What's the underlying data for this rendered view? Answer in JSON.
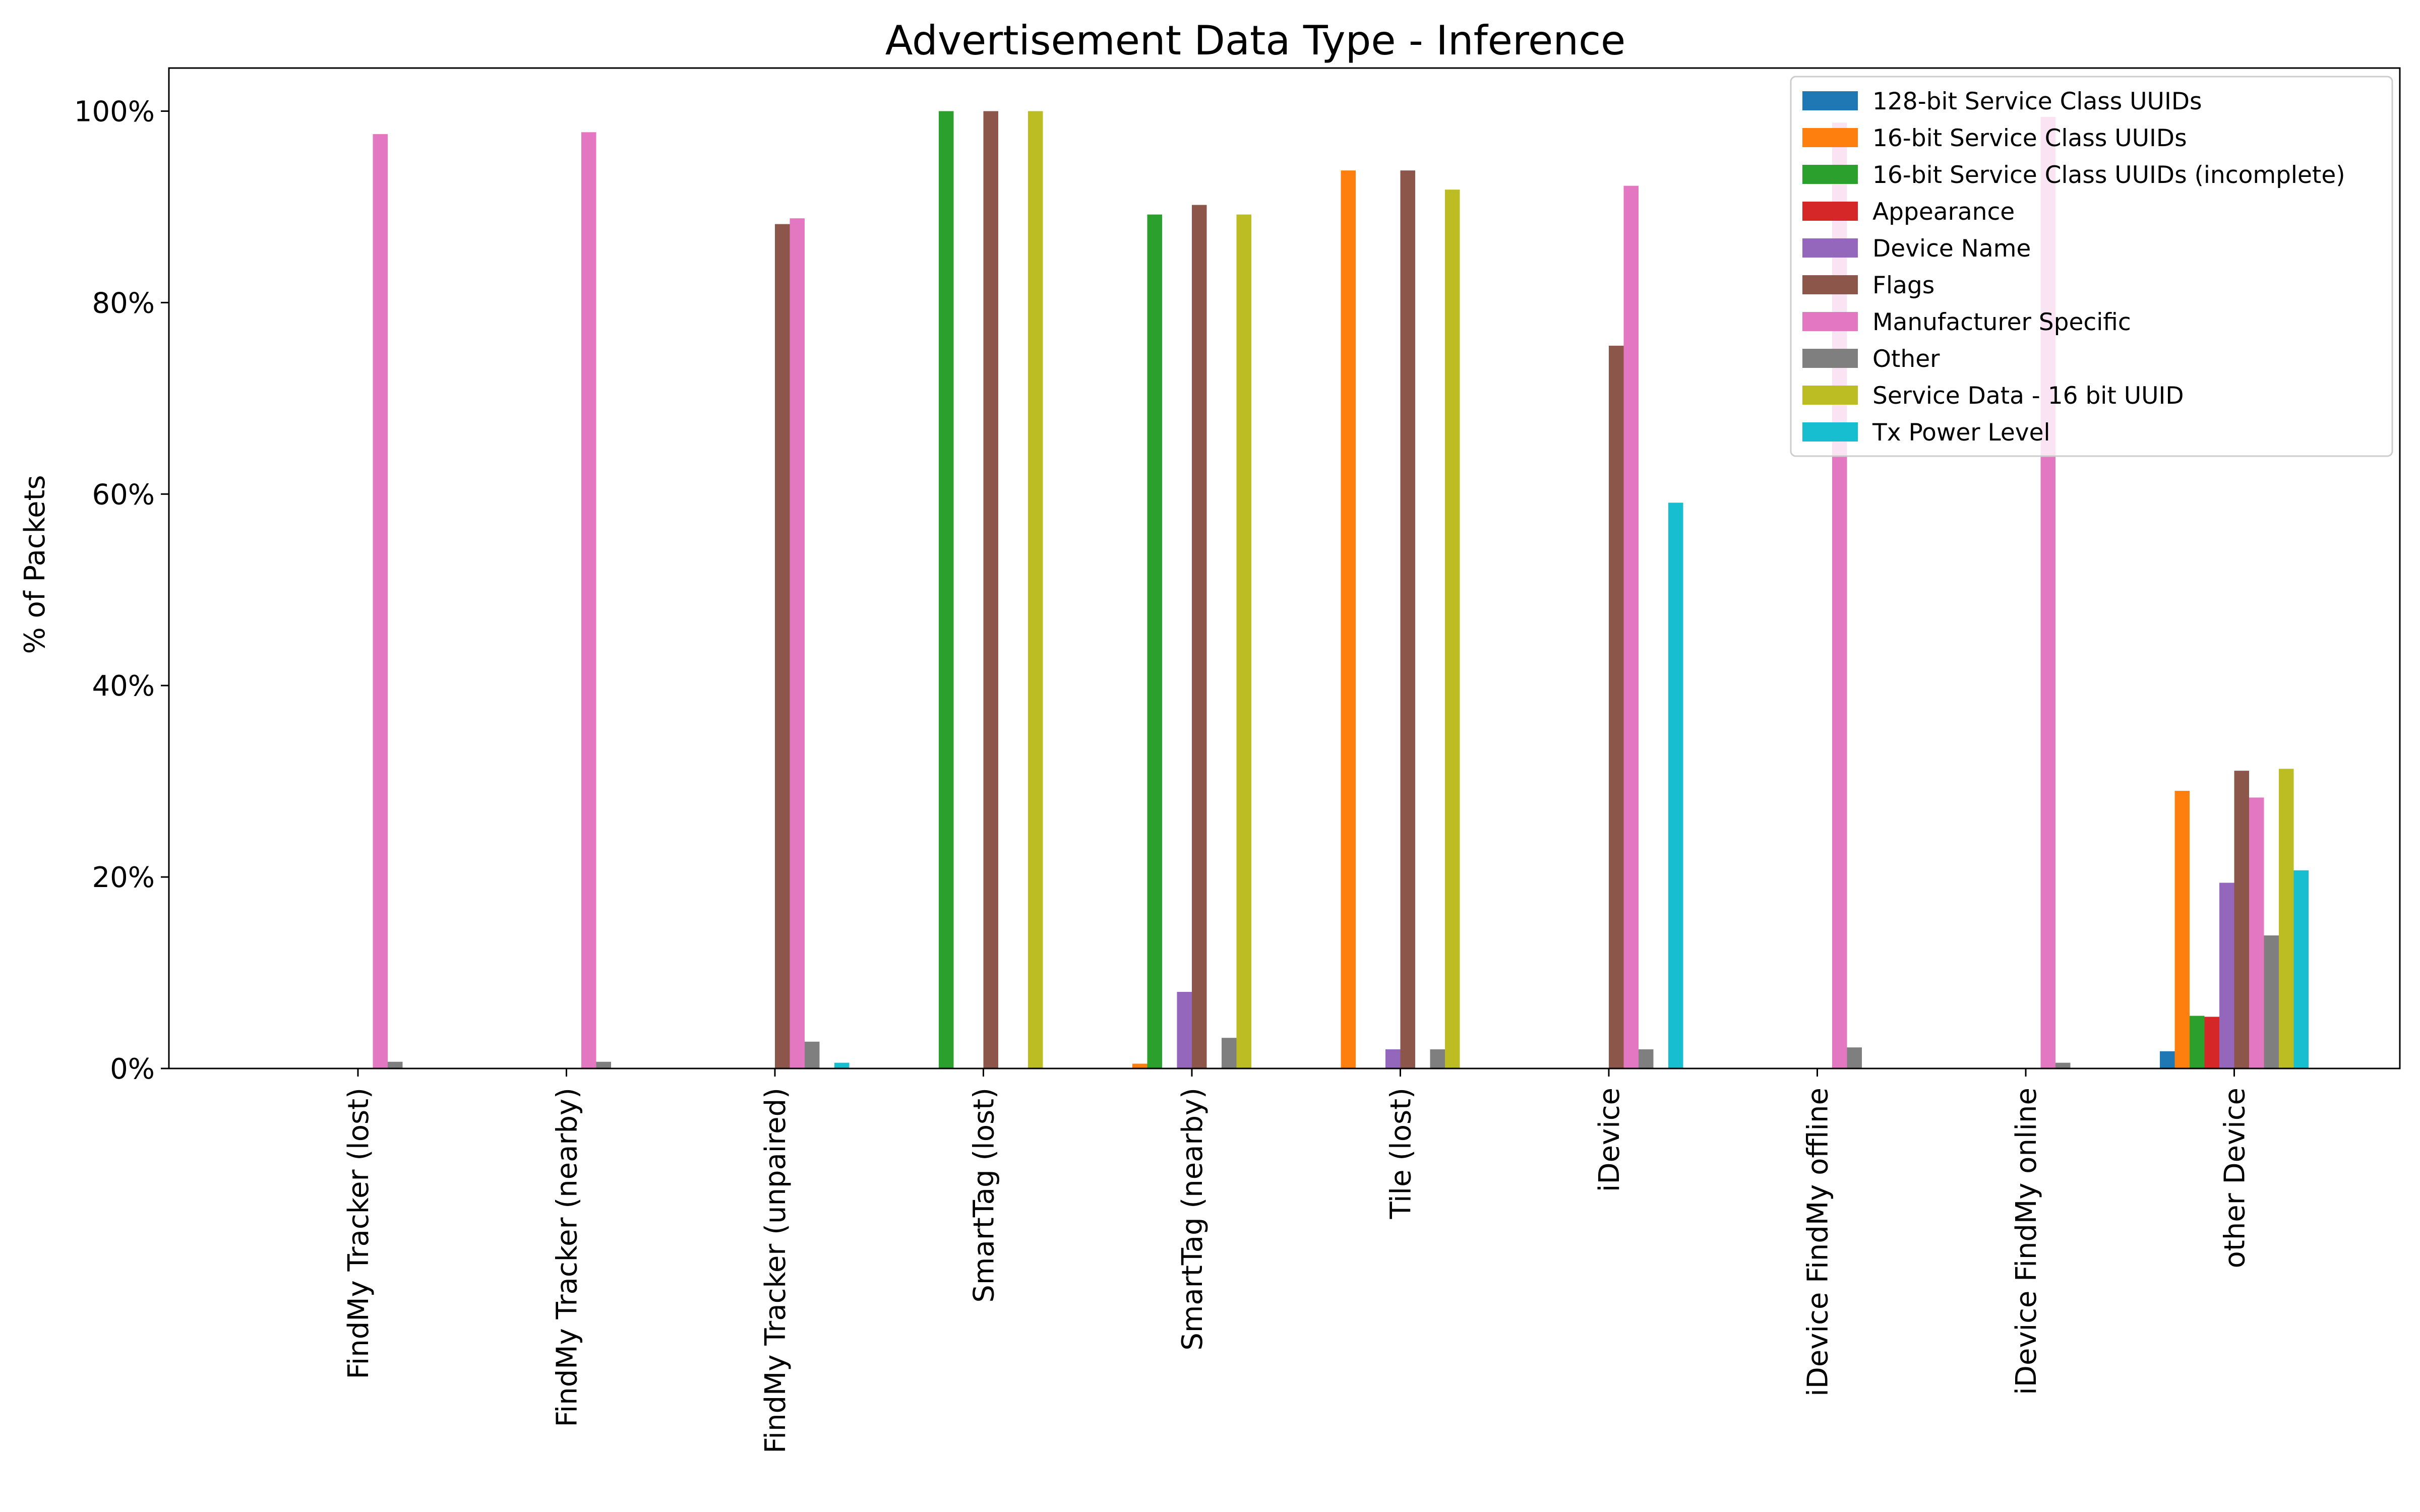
{
  "chart_data": {
    "type": "bar",
    "title": "Advertisement Data Type - Inference",
    "xlabel": "",
    "ylabel": "% of Packets",
    "ylim": [
      0,
      104.5
    ],
    "yticks": [
      0,
      20,
      40,
      60,
      80,
      100
    ],
    "ytick_labels": [
      "0%",
      "20%",
      "40%",
      "60%",
      "80%",
      "100%"
    ],
    "legend_position": "top-right",
    "grid": false,
    "categories": [
      "FindMy Tracker (lost)",
      "FindMy Tracker (nearby)",
      "FindMy Tracker (unpaired)",
      "SmartTag (lost)",
      "SmartTag (nearby)",
      "Tile (lost)",
      "iDevice",
      "iDevice FindMy offline",
      "iDevice FindMy online",
      "other Device"
    ],
    "series": [
      {
        "name": "128-bit Service Class UUIDs",
        "color": "#1f77b4",
        "values": [
          0,
          0,
          0,
          0,
          0,
          0,
          0,
          0,
          0,
          1.8
        ]
      },
      {
        "name": "16-bit Service Class UUIDs",
        "color": "#ff7f0e",
        "values": [
          0,
          0,
          0,
          0,
          0.5,
          93.8,
          0,
          0,
          0,
          29.0
        ]
      },
      {
        "name": "16-bit Service Class UUIDs (incomplete)",
        "color": "#2ca02c",
        "values": [
          0,
          0,
          0,
          100,
          89.2,
          0,
          0,
          0,
          0,
          5.5
        ]
      },
      {
        "name": "Appearance",
        "color": "#d62728",
        "values": [
          0,
          0,
          0,
          0,
          0,
          0,
          0,
          0,
          0,
          5.4
        ]
      },
      {
        "name": "Device Name",
        "color": "#9467bd",
        "values": [
          0,
          0,
          0,
          0,
          8.0,
          2.0,
          0,
          0,
          0,
          19.4
        ]
      },
      {
        "name": "Flags",
        "color": "#8c564b",
        "values": [
          0,
          0,
          88.2,
          100,
          90.2,
          93.8,
          75.5,
          0,
          0,
          31.1
        ]
      },
      {
        "name": "Manufacturer Specific",
        "color": "#e377c2",
        "values": [
          97.6,
          97.8,
          88.8,
          0,
          0,
          0,
          92.2,
          98.8,
          99.4,
          28.3
        ]
      },
      {
        "name": "Other",
        "color": "#7f7f7f",
        "values": [
          0.7,
          0.7,
          2.8,
          0,
          3.2,
          2.0,
          2.0,
          2.2,
          0.6,
          13.9
        ]
      },
      {
        "name": "Service Data - 16 bit UUID",
        "color": "#bcbd22",
        "values": [
          0,
          0,
          0,
          100,
          89.2,
          91.8,
          0,
          0,
          0,
          31.3
        ]
      },
      {
        "name": "Tx Power Level",
        "color": "#17becf",
        "values": [
          0,
          0,
          0.6,
          0,
          0,
          0,
          59.1,
          0,
          0,
          20.7
        ]
      }
    ]
  }
}
